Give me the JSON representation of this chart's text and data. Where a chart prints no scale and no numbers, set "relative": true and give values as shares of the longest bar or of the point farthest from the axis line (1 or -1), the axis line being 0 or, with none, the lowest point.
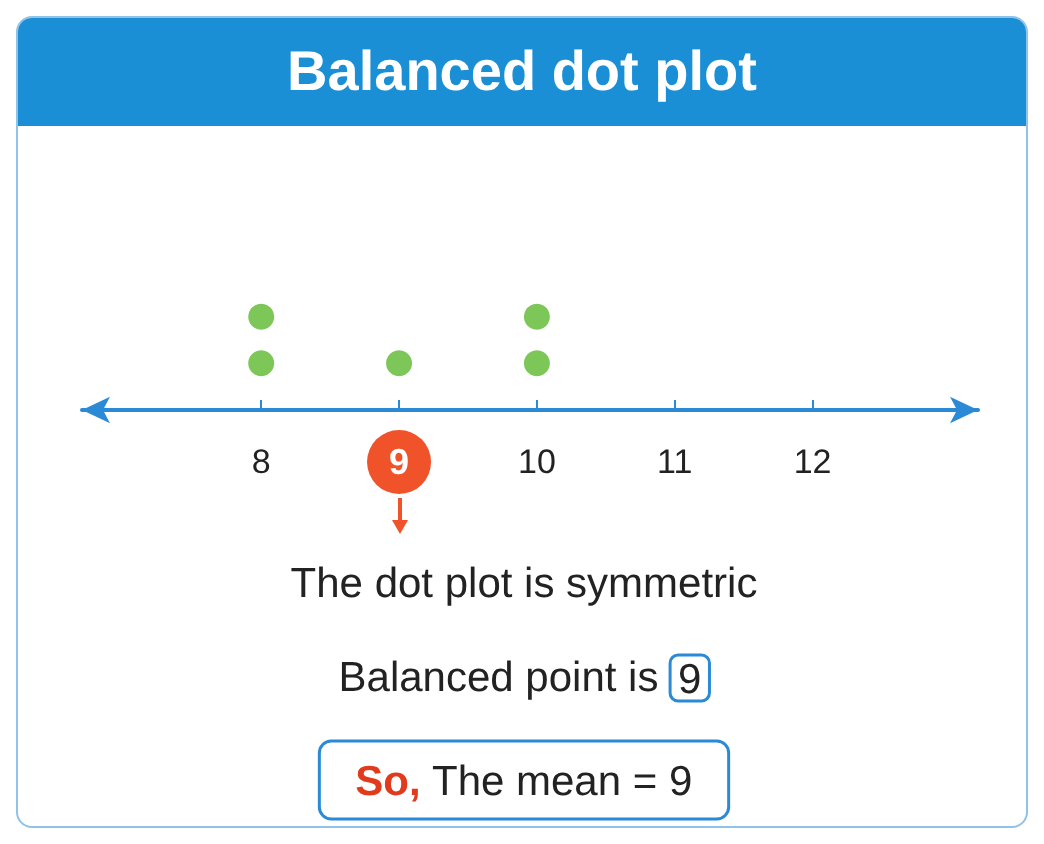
{
  "chart_data": {
    "type": "scatter",
    "title": "Balanced dot plot",
    "x": [
      8,
      8,
      9,
      10,
      10
    ],
    "values": [
      0.5,
      1,
      0.5,
      0.5,
      1
    ],
    "relative": true,
    "color": "#5cb82e",
    "marker": "circle",
    "xlim": [
      6.7,
      13.2
    ],
    "xticks": [
      8,
      9,
      10,
      11,
      12
    ],
    "tick_labels": "x",
    "grid": false,
    "annotations": [
      "The dot plot is symmetric",
      "Balanced point is 9",
      "So, The mean = 9"
    ]
  }
}
